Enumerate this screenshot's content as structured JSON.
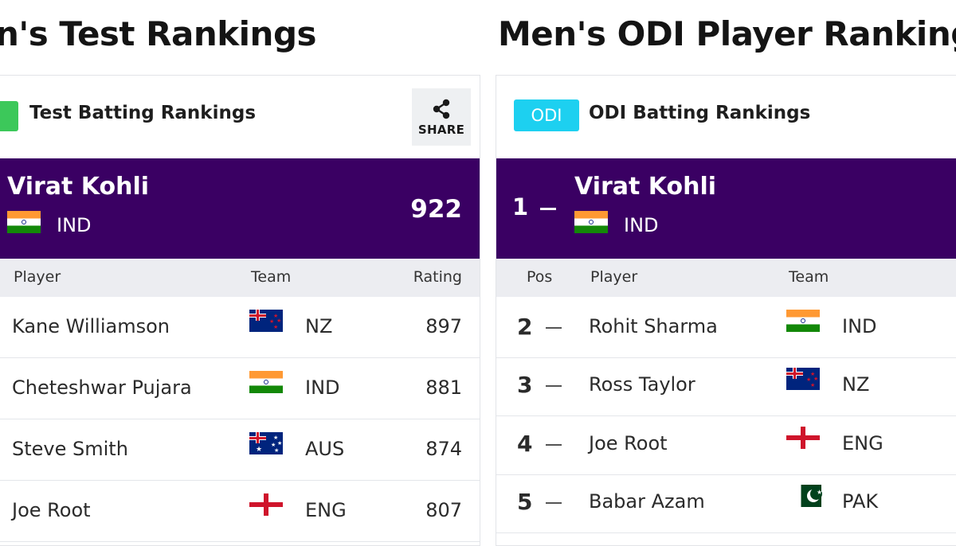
{
  "left_heading": "n's Test Rankings",
  "right_heading": "Men's ODI Player Rankings",
  "test_panel": {
    "subheader": {
      "badge_icon": "test-format-badge",
      "title": "Test Batting Rankings",
      "share_label": "SHARE",
      "share_icon": "share-icon"
    },
    "top_player": {
      "name": "Virat Kohli",
      "team": "IND",
      "rating": "922",
      "flag_icon": "india-flag-icon"
    },
    "columns": {
      "player": "Player",
      "team": "Team",
      "rating": "Rating"
    },
    "rows": [
      {
        "player": "Kane Williamson",
        "team": "NZ",
        "rating": "897",
        "flag_icon": "new-zealand-flag-icon"
      },
      {
        "player": "Cheteshwar Pujara",
        "team": "IND",
        "rating": "881",
        "flag_icon": "india-flag-icon"
      },
      {
        "player": "Steve Smith",
        "team": "AUS",
        "rating": "874",
        "flag_icon": "australia-flag-icon"
      },
      {
        "player": "Joe Root",
        "team": "ENG",
        "rating": "807",
        "flag_icon": "england-flag-icon"
      }
    ]
  },
  "odi_panel": {
    "subheader": {
      "badge": "ODI",
      "title": "ODI Batting Rankings"
    },
    "top_player": {
      "position": "1",
      "name": "Virat Kohli",
      "team": "IND",
      "flag_icon": "india-flag-icon",
      "movement_icon": "no-change-dash-icon"
    },
    "columns": {
      "pos": "Pos",
      "player": "Player",
      "team": "Team"
    },
    "rows": [
      {
        "pos": "2",
        "player": "Rohit Sharma",
        "team": "IND",
        "flag_icon": "india-flag-icon"
      },
      {
        "pos": "3",
        "player": "Ross Taylor",
        "team": "NZ",
        "flag_icon": "new-zealand-flag-icon"
      },
      {
        "pos": "4",
        "player": "Joe Root",
        "team": "ENG",
        "flag_icon": "england-flag-icon"
      },
      {
        "pos": "5",
        "player": "Babar Azam",
        "team": "PAK",
        "flag_icon": "pakistan-flag-icon"
      }
    ]
  },
  "colors": {
    "top_card": "#3a0063",
    "test_badge": "#3cc85a",
    "odi_badge": "#1dd0f0",
    "column_header": "#ecedf1"
  }
}
